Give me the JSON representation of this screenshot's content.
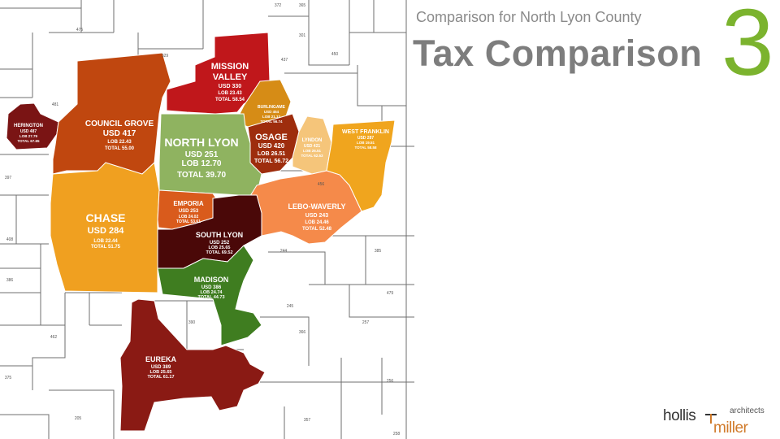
{
  "header": {
    "subtitle": "Comparison for North Lyon County",
    "title": "Tax Comparison",
    "slide_number": "3"
  },
  "logo": {
    "name_1": "hollis",
    "name_2": "miller",
    "tagline": "architects"
  },
  "districts": [
    {
      "id": "herington",
      "name": "HERINGTON",
      "usd": "USD 487",
      "lob": "LOB 27.79",
      "total": "TOTAL 67.65",
      "color": "#7a1414"
    },
    {
      "id": "council-grove",
      "name": "COUNCIL GROVE",
      "usd": "USD 417",
      "lob": "LOB 22.43",
      "total": "TOTAL 55.00",
      "color": "#c0470f"
    },
    {
      "id": "mission-valley",
      "name_1": "MISSION",
      "name_2": "VALLEY",
      "usd": "USD 330",
      "lob": "LOB 23.43",
      "total": "TOTAL 58.54",
      "color": "#c0171b"
    },
    {
      "id": "burlingame",
      "name": "BURLINGAME",
      "usd": "USD 454",
      "lob": "LOB 21.13",
      "total": "TOTAL 56.74",
      "color": "#d68c16"
    },
    {
      "id": "north-lyon",
      "name": "NORTH LYON",
      "usd": "USD 251",
      "lob": "LOB 12.70",
      "total": "TOTAL 39.70",
      "color": "#8fb360"
    },
    {
      "id": "osage",
      "name": "OSAGE",
      "usd": "USD 420",
      "lob": "LOB 26.51",
      "total": "TOTAL 56.72",
      "color": "#9e2d0d"
    },
    {
      "id": "lyndon",
      "name": "LYNDON",
      "usd": "USD 421",
      "lob": "LOB 26.51",
      "total": "TOTAL 62.53",
      "color": "#f5c57a"
    },
    {
      "id": "west-franklin",
      "name": "WEST FRANKLIN",
      "usd": "USD 287",
      "lob": "LOB 19.51",
      "total": "TOTAL 58.58",
      "color": "#f0a51e"
    },
    {
      "id": "chase",
      "name": "CHASE",
      "usd": "USD 284",
      "lob": "LOB 22.44",
      "total": "TOTAL 51.75",
      "color": "#f0a020"
    },
    {
      "id": "emporia",
      "name": "EMPORIA",
      "usd": "USD 253",
      "lob": "LOB 24.02",
      "total": "TOTAL 53.61",
      "color": "#d95b1c"
    },
    {
      "id": "lebo-waverly",
      "name": "LEBO-WAVERLY",
      "usd": "USD 243",
      "lob": "LOB 24.46",
      "total": "TOTAL 52.48",
      "color": "#f58a4a"
    },
    {
      "id": "south-lyon",
      "name": "SOUTH LYON",
      "usd": "USD 252",
      "lob": "LOB 25.65",
      "total": "TOTAL 69.52",
      "color": "#4a0808"
    },
    {
      "id": "madison",
      "name": "MADISON",
      "usd": "USD 386",
      "lob": "LOB 24.74",
      "total": "TOTAL 44.73",
      "color": "#3f7d20"
    },
    {
      "id": "eureka",
      "name": "EUREKA",
      "usd": "USD 389",
      "lob": "LOB 25.65",
      "total": "TOTAL 61.17",
      "color": "#8a1a14"
    }
  ],
  "map_numbers": [
    "475",
    "329",
    "481",
    "437",
    "301",
    "450",
    "456",
    "397",
    "408",
    "386",
    "244",
    "245",
    "366",
    "390",
    "385",
    "479",
    "257",
    "256",
    "375",
    "462",
    "205",
    "357",
    "258",
    "372",
    "365"
  ]
}
